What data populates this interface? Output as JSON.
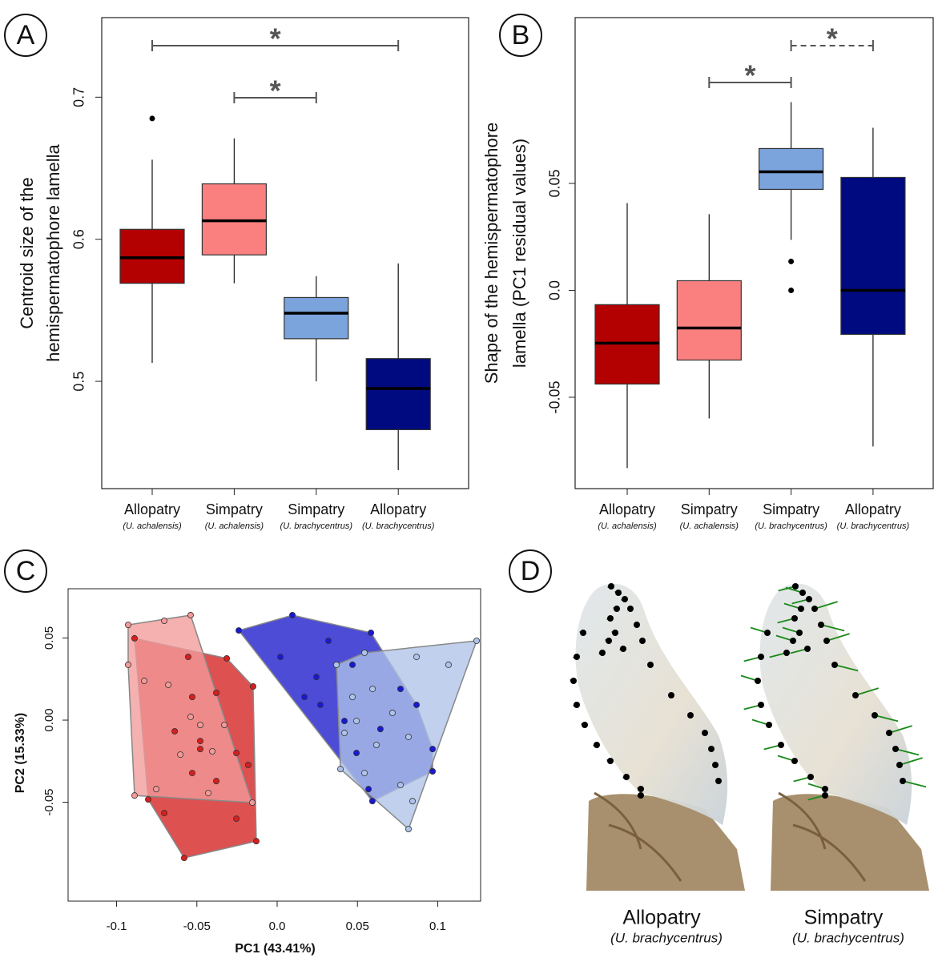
{
  "chart_data": [
    {
      "type": "box",
      "panel": "A",
      "ylabel": [
        "Centroid size of the",
        "hemispermatophore lamella"
      ],
      "categories": [
        "Allopatry",
        "Simpatry",
        "Simpatry",
        "Allopatry"
      ],
      "category_notes": [
        "(U. achalensis)",
        "(U. achalensis)",
        "(U. brachycentrus)",
        "(U. brachycentrus)"
      ],
      "ylim": [
        0.4245,
        0.756
      ],
      "yticks": [
        0.5,
        0.6,
        0.7
      ],
      "boxes": [
        {
          "color": "#b30000",
          "whisker_low": 0.513,
          "q1": 0.569,
          "median": 0.587,
          "q3": 0.607,
          "whisker_high": 0.656,
          "outliers": [
            0.685
          ]
        },
        {
          "color": "#fa8080",
          "whisker_low": 0.569,
          "q1": 0.589,
          "median": 0.613,
          "q3": 0.639,
          "whisker_high": 0.671,
          "outliers": []
        },
        {
          "color": "#7ba3dc",
          "whisker_low": 0.5,
          "q1": 0.53,
          "median": 0.548,
          "q3": 0.559,
          "whisker_high": 0.574,
          "outliers": []
        },
        {
          "color": "#000a80",
          "whisker_low": 0.4375,
          "q1": 0.466,
          "median": 0.495,
          "q3": 0.516,
          "whisker_high": 0.583,
          "outliers": []
        }
      ],
      "brackets": [
        {
          "from": 0,
          "to": 3,
          "label": "*",
          "style": "solid"
        },
        {
          "from": 1,
          "to": 2,
          "label": "*",
          "style": "solid"
        }
      ]
    },
    {
      "type": "box",
      "panel": "B",
      "ylabel": [
        "Shape of the hemispermatophore",
        "lamella (PC1 residual values)"
      ],
      "categories": [
        "Allopatry",
        "Simpatry",
        "Simpatry",
        "Allopatry"
      ],
      "category_notes": [
        "(U. achalensis)",
        "(U. achalensis)",
        "(U. brachycentrus)",
        "(U. brachycentrus)"
      ],
      "ylim": [
        -0.0927,
        0.1275
      ],
      "yticks": [
        -0.05,
        {
          "value": 0,
          "label": "0.0"
        },
        0.05
      ],
      "boxes": [
        {
          "color": "#b30000",
          "whisker_low": -0.0831,
          "q1": -0.0438,
          "median": -0.0247,
          "q3": -0.0067,
          "whisker_high": 0.0408,
          "outliers": []
        },
        {
          "color": "#fa8080",
          "whisker_low": -0.0599,
          "q1": -0.0326,
          "median": -0.0176,
          "q3": 0.0045,
          "whisker_high": 0.0356,
          "outliers": []
        },
        {
          "color": "#7ba3dc",
          "whisker_low": 0.0236,
          "q1": 0.0472,
          "median": 0.0554,
          "q3": 0.0663,
          "whisker_high": 0.088,
          "outliers": [
            0.0135,
            0
          ]
        },
        {
          "color": "#000a80",
          "whisker_low": -0.073,
          "q1": -0.0206,
          "median": 0,
          "q3": 0.0528,
          "whisker_high": 0.076,
          "outliers": []
        }
      ],
      "brackets": [
        {
          "from": 1,
          "to": 2,
          "label": "*",
          "style": "solid"
        },
        {
          "from": 2,
          "to": 3,
          "label": "*",
          "style": "dashed"
        }
      ]
    },
    {
      "type": "scatter",
      "panel": "C",
      "xlabel": "PC1 (43.41%)",
      "ylabel": "PC2 (15.33%)",
      "xlim": [
        -0.1302,
        0.1267
      ],
      "ylim": [
        -0.1102,
        0.08
      ],
      "xticks": [
        -0.1,
        -0.05,
        {
          "value": 0,
          "label": "0.0"
        },
        0.05,
        0.1
      ],
      "yticks": [
        -0.05,
        {
          "value": 0,
          "label": "0.00"
        },
        0.05
      ],
      "series": [
        {
          "color": "#d42020",
          "x": [
            -0.0888,
            -0.0314,
            -0.015,
            -0.013,
            -0.0579,
            -0.0803,
            -0.0529,
            -0.0379,
            -0.0638,
            -0.0479,
            -0.0254,
            -0.0529,
            -0.0703,
            -0.0254,
            -0.0379,
            -0.018,
            -0.0554,
            -0.0479
          ],
          "y": [
            0.0498,
            0.0376,
            0.0205,
            -0.0737,
            -0.0839,
            -0.0483,
            0.0141,
            0.0166,
            -0.0068,
            -0.0127,
            -0.02,
            -0.0322,
            -0.0566,
            -0.06,
            -0.0371,
            -0.0273,
            0.0385,
            -0.0176
          ]
        },
        {
          "color": "#f29a9a",
          "x": [
            -0.0928,
            -0.0539,
            -0.0928,
            -0.0888,
            -0.0155,
            -0.0703,
            -0.0828,
            -0.0678,
            -0.0539,
            -0.0404,
            -0.0603,
            -0.0753,
            -0.0429,
            -0.0329,
            -0.0479
          ],
          "y": [
            0.058,
            0.0639,
            0.0337,
            -0.0459,
            -0.0502,
            0.0605,
            0.0239,
            0.0215,
            0.002,
            -0.019,
            -0.021,
            -0.042,
            -0.0444,
            -0.0029,
            -0.0029
          ]
        },
        {
          "color": "#1a1acc",
          "x": [
            -0.0239,
            0.0095,
            0.0584,
            0.0968,
            0.0968,
            0.0593,
            0.002,
            0.0319,
            0.0244,
            0.0469,
            0.0269,
            0.0419,
            0.0643,
            0.0768,
            0.0494,
            0.017,
            0.0868,
            0.0569
          ],
          "y": [
            0.0546,
            0.0639,
            0.0532,
            -0.0176,
            -0.0312,
            -0.0493,
            0.0385,
            0.0483,
            0.0263,
            0.0337,
            0.0093,
            -0.0005,
            -0.0054,
            0.019,
            -0.02,
            0.0141,
            0.0093,
            -0.042
          ]
        },
        {
          "color": "#aec3e8",
          "x": [
            0.0369,
            0.1242,
            0.0818,
            0.0394,
            0.0544,
            0.0868,
            0.1067,
            0.0469,
            0.0594,
            0.0718,
            0.0419,
            0.0618,
            0.0818,
            0.0544,
            0.0768,
            0.0843,
            0.0494
          ],
          "y": [
            0.0337,
            0.0483,
            -0.0663,
            -0.0298,
            0.041,
            0.0385,
            0.0337,
            0.0141,
            0.019,
            0.0044,
            -0.0078,
            -0.0151,
            -0.0102,
            -0.0322,
            -0.0395,
            -0.0493,
            -0.0005
          ]
        }
      ]
    }
  ],
  "figure_d": {
    "panel": "D",
    "captions": [
      {
        "title": "Allopatry",
        "note": "(U. brachycentrus)"
      },
      {
        "title": "Simpatry",
        "note": "(U. brachycentrus)"
      }
    ]
  }
}
